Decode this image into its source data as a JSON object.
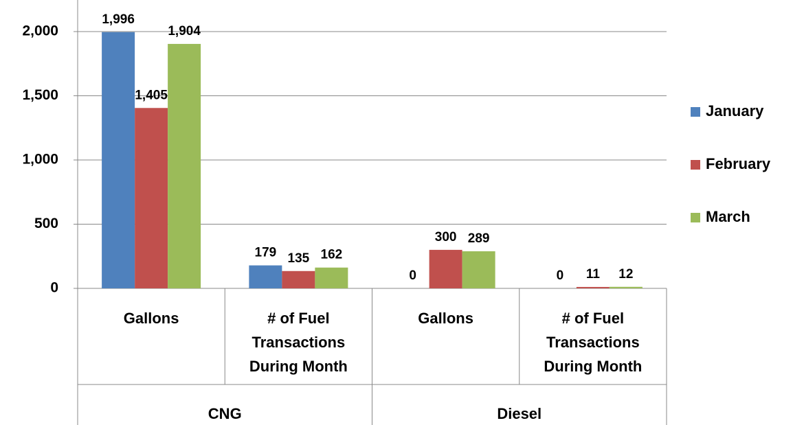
{
  "chart_data": {
    "type": "bar",
    "categories": [
      "Gallons",
      "# of Fuel Transactions During Month",
      "Gallons",
      "# of Fuel Transactions During Month"
    ],
    "groups": [
      "CNG",
      "Diesel"
    ],
    "series": [
      {
        "name": "January",
        "color": "#4f81bd",
        "values": [
          1996,
          179,
          0,
          0
        ],
        "value_labels": [
          "1,996",
          "179",
          "0",
          "0"
        ]
      },
      {
        "name": "February",
        "color": "#c0504d",
        "values": [
          1405,
          135,
          300,
          11
        ],
        "value_labels": [
          "1,405",
          "135",
          "300",
          "11"
        ]
      },
      {
        "name": "March",
        "color": "#9bbb59",
        "values": [
          1904,
          162,
          289,
          12
        ],
        "value_labels": [
          "1,904",
          "162",
          "289",
          "12"
        ]
      }
    ],
    "ylim": [
      0,
      2000
    ],
    "yticks": [
      0,
      500,
      {
        "value": 1000,
        "label": "1,000"
      },
      {
        "value": 1500,
        "label": "1,500"
      },
      {
        "value": 2000,
        "label": "2,000"
      }
    ],
    "grid": true,
    "legend": "right"
  }
}
